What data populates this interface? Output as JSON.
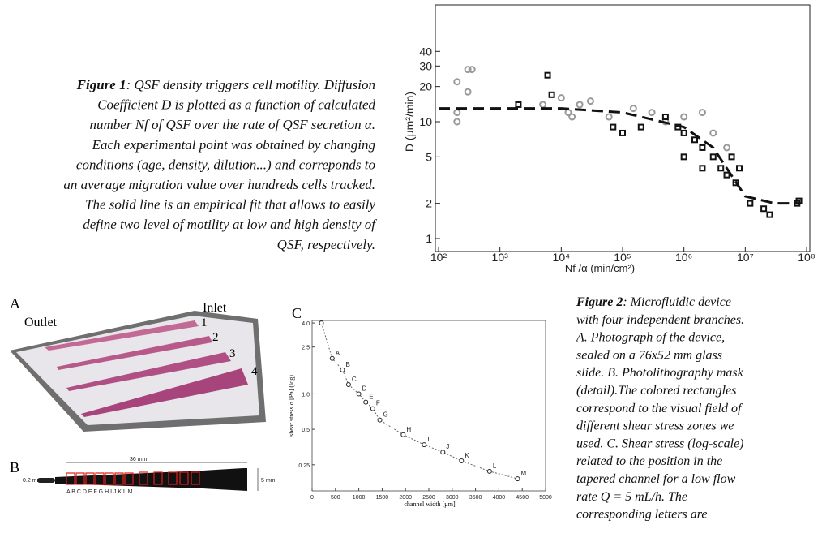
{
  "figure1": {
    "label": "Figure 1",
    "caption_lines": [
      ": QSF density triggers cell motility. Diffusion",
      "Coefficient D is plotted as a function of calculated",
      "number Nf of QSF over the rate of QSF secretion α.",
      "Each experimental point was obtained by changing",
      "conditions (age, density, dilution...) and correponds to",
      "an average migration value over hundreds cells tracked.",
      "The solid line is an empirical fit that allows to easily",
      "define two level of motility at low and high density of",
      "QSF, respectively."
    ],
    "plot": {
      "type": "scatter",
      "ylabel": "D (µm²/min)",
      "xlabel": "Nf /α (min/cm²)",
      "log_x": true,
      "log_y": true,
      "xlim": [
        100,
        100000000
      ],
      "ylim": [
        1,
        100
      ],
      "xticks": [
        {
          "value": 100,
          "label": "10²"
        },
        {
          "value": 1000,
          "label": "10³"
        },
        {
          "value": 10000,
          "label": "10⁴"
        },
        {
          "value": 100000,
          "label": "10⁵"
        },
        {
          "value": 1000000,
          "label": "10⁶"
        },
        {
          "value": 10000000,
          "label": "10⁷"
        },
        {
          "value": 100000000,
          "label": "10⁸"
        }
      ],
      "yticks": [
        1,
        2,
        5,
        10,
        20,
        30,
        40
      ],
      "series": [
        {
          "marker": "circle",
          "color": "#999999",
          "x": [
            200,
            200,
            200,
            300,
            300,
            350,
            5000,
            10000,
            13000,
            15000,
            20000,
            30000,
            60000,
            150000,
            300000,
            500000,
            1000000,
            2000000,
            3000000,
            5000000
          ],
          "y": [
            12,
            10,
            22,
            28,
            18,
            28,
            14,
            16,
            12,
            11,
            14,
            15,
            11,
            13,
            12,
            10,
            11,
            12,
            8,
            6
          ]
        },
        {
          "marker": "square",
          "color": "#111111",
          "x": [
            2000,
            6000,
            7000,
            70000,
            100000,
            200000,
            500000,
            800000,
            1000000,
            1500000,
            2000000,
            3000000,
            4000000,
            5000000,
            6000000,
            7000000,
            8000000,
            1000000,
            2000000,
            12000000,
            20000000,
            25000000,
            70000000,
            75000000
          ],
          "y": [
            14,
            25,
            17,
            9,
            8,
            9,
            11,
            9,
            8,
            7,
            6,
            5,
            4,
            3.5,
            5,
            3,
            4,
            5,
            4,
            2,
            1.8,
            1.6,
            2,
            2.1
          ]
        },
        {
          "marker": "dashed-line",
          "color": "#111111",
          "x": [
            100,
            1000,
            10000,
            100000,
            1000000,
            3000000,
            10000000,
            30000000,
            80000000
          ],
          "y": [
            13,
            13,
            13,
            12,
            9,
            6,
            2.3,
            2,
            2
          ]
        }
      ]
    }
  },
  "figure2": {
    "label": "Figure 2",
    "caption_lines": [
      ": Microfluidic device",
      "with four independent branches.",
      "A. Photograph of the device,",
      "sealed on a 76x52 mm glass",
      "slide. B. Photolithography mask",
      "(detail).The colored rectangles",
      "correspond to the visual field of",
      "different shear stress zones we",
      "used. C. Shear stress (log-scale)",
      "related to the position in the",
      "tapered channel for a low flow",
      "rate Q = 5 mL/h. The",
      "corresponding letters are"
    ],
    "panel_a": {
      "letter": "A",
      "outlet": "Outlet",
      "inlet": "Inlet",
      "branches": [
        "1",
        "2",
        "3",
        "4"
      ]
    },
    "panel_b": {
      "letter": "B",
      "width_label": "0.2 mm",
      "length_label": "36 mm",
      "height_label": "5 mm",
      "zones": "A B C D E F G  H  I  J  K  L  M"
    },
    "panel_c": {
      "letter": "C",
      "type": "line",
      "ylabel": "shear stress σ [Pa] (log)",
      "xlabel": "channel width [µm]",
      "log_y": true,
      "xlim": [
        0,
        5000
      ],
      "ylim": [
        0.15,
        4.2
      ],
      "xticks": [
        0,
        500,
        1000,
        1500,
        2000,
        2500,
        3000,
        3500,
        4000,
        4500,
        5000
      ],
      "yticks": [
        {
          "value": 4,
          "label": "4.0"
        },
        2.5,
        {
          "value": 1,
          "label": "1.0"
        },
        0.5,
        0.25
      ],
      "point_labels": [
        null,
        "A",
        "B",
        "C",
        "D",
        "E",
        "F",
        "G",
        "H",
        "I",
        "J",
        "K",
        "L",
        "M"
      ],
      "x": [
        200,
        430,
        650,
        780,
        1000,
        1150,
        1300,
        1450,
        1950,
        2400,
        2800,
        3200,
        3800,
        4400
      ],
      "y": [
        4.0,
        2.0,
        1.6,
        1.2,
        1.0,
        0.85,
        0.75,
        0.6,
        0.45,
        0.37,
        0.32,
        0.27,
        0.22,
        0.19
      ]
    }
  }
}
